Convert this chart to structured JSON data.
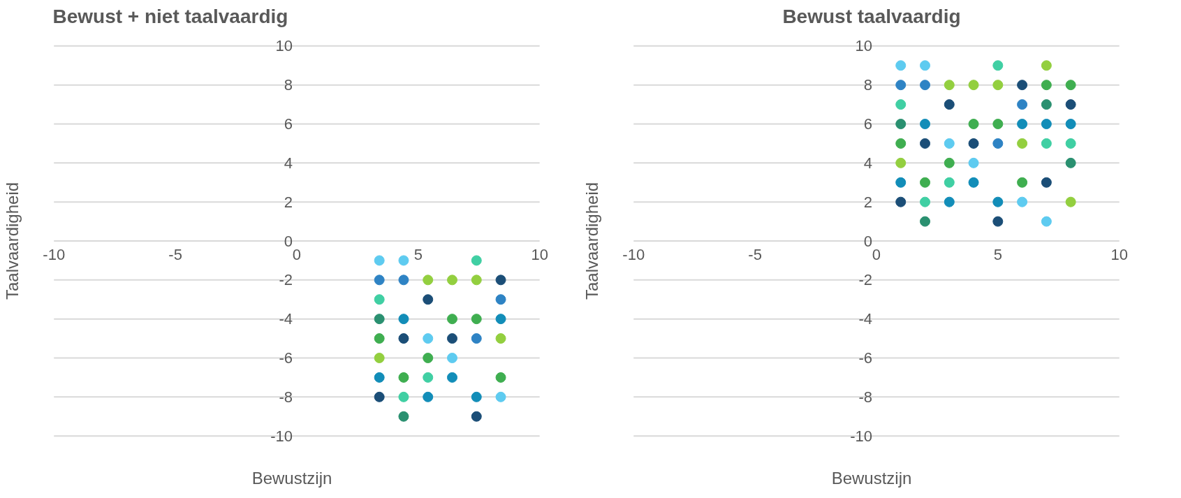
{
  "chart_data": [
    {
      "type": "scatter",
      "title": "Bewust + niet taalvaardig",
      "xlabel": "Bewustzijn",
      "ylabel": "Taalvaardigheid",
      "xlim": [
        -10,
        10
      ],
      "ylim": [
        -10,
        10
      ],
      "xticks": [
        -10,
        -5,
        0,
        5,
        10
      ],
      "yticks": [
        -10,
        -8,
        -6,
        -4,
        -2,
        0,
        2,
        4,
        6,
        8,
        10
      ],
      "grid": "y",
      "marker": "circle",
      "x": [
        3.4,
        4.4,
        7.4,
        3.4,
        4.4,
        5.4,
        6.4,
        7.4,
        8.4,
        3.4,
        5.4,
        8.4,
        3.4,
        4.4,
        6.4,
        7.4,
        8.4,
        3.4,
        4.4,
        5.4,
        6.4,
        7.4,
        8.4,
        3.4,
        5.4,
        6.4,
        3.4,
        4.4,
        5.4,
        6.4,
        8.4,
        3.4,
        4.4,
        5.4,
        7.4,
        8.4,
        4.4,
        7.4
      ],
      "values": [
        -1,
        -1,
        -1,
        -2,
        -2,
        -2,
        -2,
        -2,
        -2,
        -3,
        -3,
        -3,
        -4,
        -4,
        -4,
        -4,
        -4,
        -5,
        -5,
        -5,
        -5,
        -5,
        -5,
        -6,
        -6,
        -6,
        -7,
        -7,
        -7,
        -7,
        -7,
        -8,
        -8,
        -8,
        -8,
        -8,
        -9,
        -9
      ],
      "colors": [
        "#5ecbf0",
        "#5ecbf0",
        "#40cfa3",
        "#2e83c4",
        "#2e83c4",
        "#93cf3f",
        "#93cf3f",
        "#93cf3f",
        "#1b4e77",
        "#40cfa3",
        "#1b4e77",
        "#2e83c4",
        "#2a9070",
        "#128db8",
        "#3fae50",
        "#3fae50",
        "#128db8",
        "#3fae50",
        "#1b4e77",
        "#5ecbf0",
        "#1b4e77",
        "#2e83c4",
        "#93cf3f",
        "#93cf3f",
        "#3fae50",
        "#5ecbf0",
        "#128db8",
        "#3fae50",
        "#40cfa3",
        "#128db8",
        "#3fae50",
        "#1b4e77",
        "#40cfa3",
        "#128db8",
        "#128db8",
        "#5ecbf0",
        "#2a9070",
        "#1b4e77"
      ]
    },
    {
      "type": "scatter",
      "title": "Bewust taalvaardig",
      "xlabel": "Bewustzijn",
      "ylabel": "Taalvaardigheid",
      "xlim": [
        -10,
        10
      ],
      "ylim": [
        -10,
        10
      ],
      "xticks": [
        -10,
        -5,
        0,
        5,
        10
      ],
      "yticks": [
        -10,
        -8,
        -6,
        -4,
        -2,
        0,
        2,
        4,
        6,
        8,
        10
      ],
      "grid": "y",
      "marker": "circle",
      "x": [
        1,
        2,
        5,
        7,
        1,
        2,
        3,
        4,
        5,
        6,
        7,
        8,
        1,
        3,
        6,
        7,
        8,
        1,
        2,
        4,
        5,
        6,
        7,
        8,
        1,
        2,
        3,
        4,
        5,
        6,
        7,
        8,
        1,
        3,
        4,
        8,
        1,
        2,
        3,
        4,
        6,
        7,
        1,
        2,
        3,
        5,
        6,
        8,
        2,
        5,
        7
      ],
      "values": [
        9,
        9,
        9,
        9,
        8,
        8,
        8,
        8,
        8,
        8,
        8,
        8,
        7,
        7,
        7,
        7,
        7,
        6,
        6,
        6,
        6,
        6,
        6,
        6,
        5,
        5,
        5,
        5,
        5,
        5,
        5,
        5,
        4,
        4,
        4,
        4,
        3,
        3,
        3,
        3,
        3,
        3,
        2,
        2,
        2,
        2,
        2,
        2,
        1,
        1,
        1
      ],
      "colors": [
        "#5ecbf0",
        "#5ecbf0",
        "#40cfa3",
        "#93cf3f",
        "#2e83c4",
        "#2e83c4",
        "#93cf3f",
        "#93cf3f",
        "#93cf3f",
        "#1b4e77",
        "#3fae50",
        "#3fae50",
        "#40cfa3",
        "#1b4e77",
        "#2e83c4",
        "#2a9070",
        "#1b4e77",
        "#2a9070",
        "#128db8",
        "#3fae50",
        "#3fae50",
        "#128db8",
        "#128db8",
        "#128db8",
        "#3fae50",
        "#1b4e77",
        "#5ecbf0",
        "#1b4e77",
        "#2e83c4",
        "#93cf3f",
        "#40cfa3",
        "#40cfa3",
        "#93cf3f",
        "#3fae50",
        "#5ecbf0",
        "#2a9070",
        "#128db8",
        "#3fae50",
        "#40cfa3",
        "#128db8",
        "#3fae50",
        "#1b4e77",
        "#1b4e77",
        "#40cfa3",
        "#128db8",
        "#128db8",
        "#5ecbf0",
        "#93cf3f",
        "#2a9070",
        "#1b4e77",
        "#5ecbf0"
      ]
    }
  ]
}
